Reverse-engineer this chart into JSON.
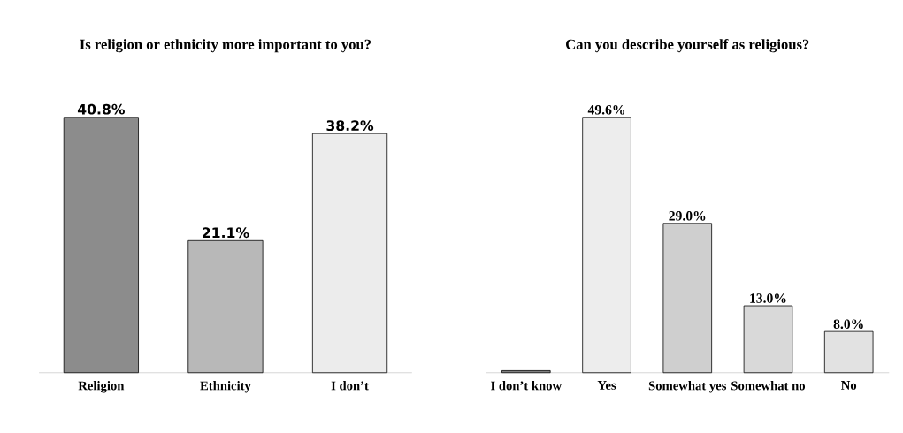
{
  "chart_data": [
    {
      "type": "bar",
      "title": "Is religion or ethnicity more important to you?",
      "categories": [
        "Religion",
        "Ethnicity",
        "I don’t"
      ],
      "values": [
        40.8,
        21.1,
        38.2
      ],
      "value_labels": [
        "40.8%",
        "21.1%",
        "38.2%"
      ],
      "colors": [
        "#8c8c8c",
        "#b8b8b8",
        "#ececec"
      ],
      "tick_labels": "x"
    },
    {
      "type": "bar",
      "title": "Can you describe yourself as religious?",
      "categories": [
        "I don’t know",
        "Yes",
        "Somewhat yes",
        "Somewhat no",
        "No"
      ],
      "values": [
        0.4,
        49.6,
        29.0,
        13.0,
        8.0
      ],
      "value_labels": [
        null,
        "49.6%",
        "29.0%",
        "13.0%",
        "8.0%"
      ],
      "colors": [
        "#808080",
        "#ededed",
        "#cfcfcf",
        "#d9d9d9",
        "#e2e2e2"
      ],
      "tick_labels": "x"
    }
  ]
}
